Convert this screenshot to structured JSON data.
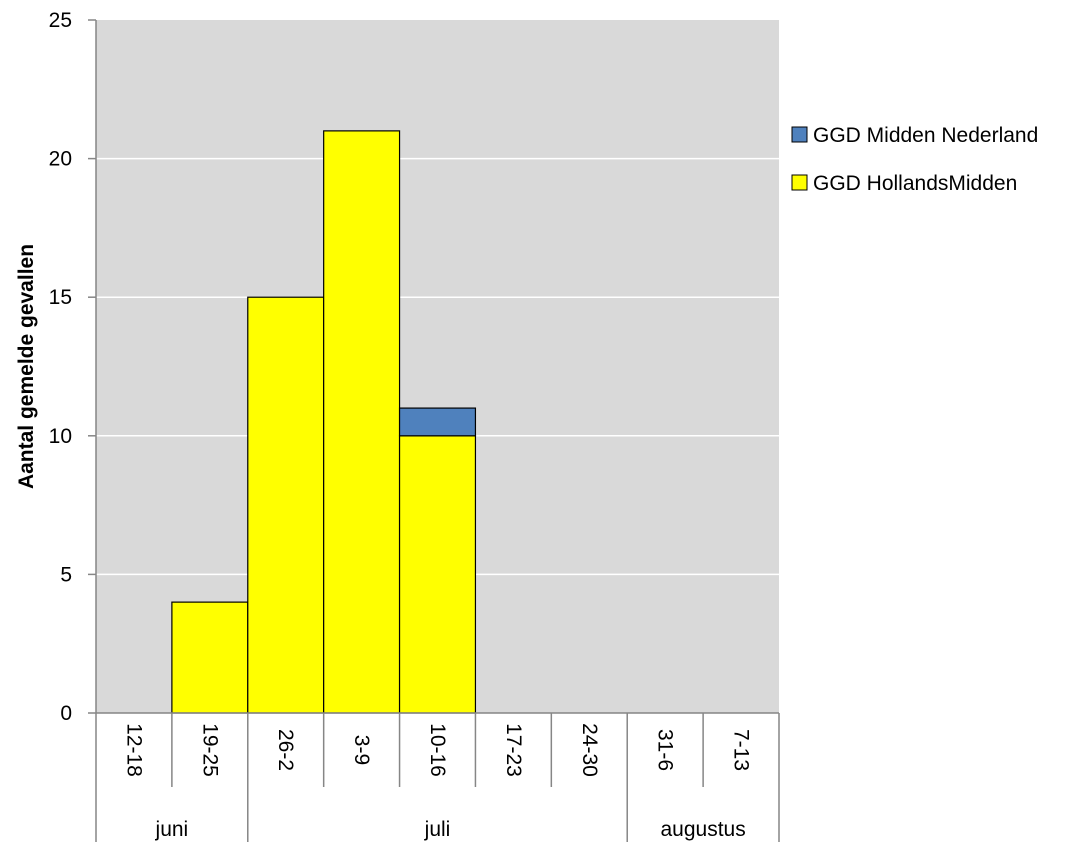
{
  "chart_data": {
    "type": "bar",
    "stacked": true,
    "categories": [
      "12-18",
      "19-25",
      "26-2",
      "3-9",
      "10-16",
      "17-23",
      "24-30",
      "31-6",
      "7-13"
    ],
    "months": [
      {
        "label": "juni",
        "start": 0,
        "end": 2
      },
      {
        "label": "juli",
        "start": 2,
        "end": 7
      },
      {
        "label": "augustus",
        "start": 7,
        "end": 9
      }
    ],
    "series": [
      {
        "name": "GGD HollandsMidden",
        "color": "#ffff00",
        "values": [
          0,
          4,
          15,
          21,
          10,
          0,
          0,
          0,
          0
        ]
      },
      {
        "name": "GGD Midden Nederland",
        "color": "#4f81bd",
        "values": [
          0,
          0,
          0,
          0,
          1,
          0,
          0,
          0,
          0
        ]
      }
    ],
    "ylabel": "Aantal gemelde gevallen",
    "xlabel": "",
    "ylim": [
      0,
      25
    ],
    "yticks": [
      0,
      5,
      10,
      15,
      20,
      25
    ],
    "legend_order": [
      "GGD Midden Nederland",
      "GGD HollandsMidden"
    ],
    "legend_position": "right",
    "grid": true,
    "plot_background": "#d9d9d9"
  }
}
